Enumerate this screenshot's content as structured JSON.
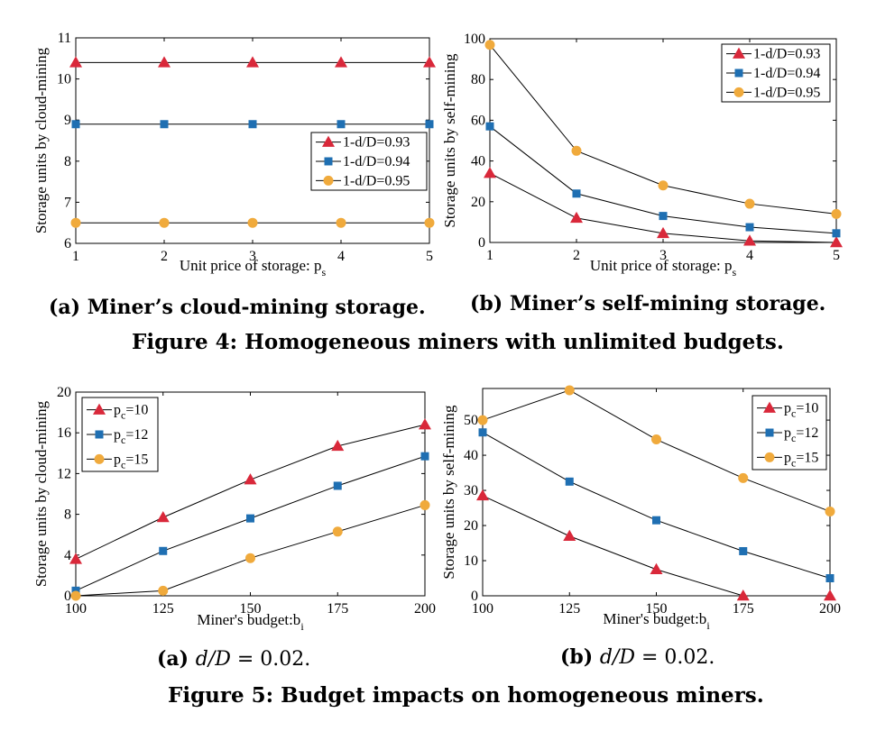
{
  "figure4": {
    "caption": "Figure 4: Homogeneous miners with unlimited budgets.",
    "subcaption_a": "(a) Miner’s cloud-mining storage.",
    "subcaption_b": "(b) Miner’s self-mining storage."
  },
  "figure5": {
    "caption": "Figure 5: Budget impacts on homogeneous miners.",
    "subcaption_a_prefix": "(a)",
    "subcaption_a_math": "d/D",
    "subcaption_a_value": " = 0.02.",
    "subcaption_b_prefix": "(b)",
    "subcaption_b_math": "d/D",
    "subcaption_b_value": " = 0.02."
  },
  "colors": {
    "red": "#d9283a",
    "blue": "#1f6fb2",
    "orange": "#f0aa3c",
    "line": "#000000"
  },
  "chart_data": [
    {
      "id": "fig4a",
      "type": "line",
      "xlabel": "Unit price of storage: p",
      "xlabel_sub": "s",
      "ylabel": "Storage units by cloud-mining",
      "x": [
        1,
        2,
        3,
        4,
        5
      ],
      "xlim": [
        1,
        5
      ],
      "ylim": [
        6,
        11
      ],
      "xticks": [
        1,
        2,
        3,
        4,
        5
      ],
      "yticks": [
        6,
        7,
        8,
        9,
        10,
        11
      ],
      "legend_position": "lower-right",
      "series": [
        {
          "name": "1-d/D=0.93",
          "name_sub": "",
          "marker": "triangle",
          "color": "red",
          "values": [
            10.4,
            10.4,
            10.4,
            10.4,
            10.4
          ]
        },
        {
          "name": "1-d/D=0.94",
          "name_sub": "",
          "marker": "square",
          "color": "blue",
          "values": [
            8.9,
            8.9,
            8.9,
            8.9,
            8.9
          ]
        },
        {
          "name": "1-d/D=0.95",
          "name_sub": "",
          "marker": "circle",
          "color": "orange",
          "values": [
            6.5,
            6.5,
            6.5,
            6.5,
            6.5
          ]
        }
      ]
    },
    {
      "id": "fig4b",
      "type": "line",
      "xlabel": "Unit price of storage: p",
      "xlabel_sub": "s",
      "ylabel": "Storage units by self-mining",
      "x": [
        1,
        2,
        3,
        4,
        5
      ],
      "xlim": [
        1,
        5
      ],
      "ylim": [
        0,
        100
      ],
      "xticks": [
        1,
        2,
        3,
        4,
        5
      ],
      "yticks": [
        0,
        20,
        40,
        60,
        80,
        100
      ],
      "legend_position": "top-right",
      "series": [
        {
          "name": "1-d/D=0.93",
          "name_sub": "",
          "marker": "triangle",
          "color": "red",
          "values": [
            34,
            12,
            4.5,
            0.8,
            0
          ]
        },
        {
          "name": "1-d/D=0.94",
          "name_sub": "",
          "marker": "square",
          "color": "blue",
          "values": [
            57,
            24,
            13,
            7.5,
            4.5
          ]
        },
        {
          "name": "1-d/D=0.95",
          "name_sub": "",
          "marker": "circle",
          "color": "orange",
          "values": [
            97,
            45,
            28,
            19,
            14
          ]
        }
      ]
    },
    {
      "id": "fig5a",
      "type": "line",
      "xlabel": "Miner's budget:b",
      "xlabel_sub": "i",
      "ylabel": "Storage units by cloud-mining",
      "x": [
        100,
        125,
        150,
        175,
        200
      ],
      "xlim": [
        100,
        200
      ],
      "ylim": [
        0,
        20
      ],
      "xticks": [
        100,
        125,
        150,
        175,
        200
      ],
      "yticks": [
        0,
        4,
        8,
        12,
        16,
        20
      ],
      "legend_position": "top-left",
      "series": [
        {
          "name": "p",
          "name_sub": "c",
          "name_suffix": "=10",
          "marker": "triangle",
          "color": "red",
          "values": [
            3.6,
            7.7,
            11.4,
            14.7,
            16.8
          ]
        },
        {
          "name": "p",
          "name_sub": "c",
          "name_suffix": "=12",
          "marker": "square",
          "color": "blue",
          "values": [
            0.5,
            4.4,
            7.6,
            10.8,
            13.7
          ]
        },
        {
          "name": "p",
          "name_sub": "c",
          "name_suffix": "=15",
          "marker": "circle",
          "color": "orange",
          "values": [
            0,
            0.5,
            3.7,
            6.3,
            8.9
          ]
        }
      ]
    },
    {
      "id": "fig5b",
      "type": "line",
      "xlabel": "Miner's budget:b",
      "xlabel_sub": "i",
      "ylabel": "Storage units by self-mining",
      "x": [
        100,
        125,
        150,
        175,
        200
      ],
      "xlim": [
        100,
        200
      ],
      "ylim": [
        0,
        59
      ],
      "xticks": [
        100,
        125,
        150,
        175,
        200
      ],
      "yticks": [
        0,
        10,
        20,
        30,
        40,
        50
      ],
      "legend_position": "top-right",
      "series": [
        {
          "name": "p",
          "name_sub": "c",
          "name_suffix": "=10",
          "marker": "triangle",
          "color": "red",
          "values": [
            28.5,
            17,
            7.5,
            0,
            0
          ]
        },
        {
          "name": "p",
          "name_sub": "c",
          "name_suffix": "=12",
          "marker": "square",
          "color": "blue",
          "values": [
            46.5,
            32.5,
            21.5,
            12.7,
            5
          ]
        },
        {
          "name": "p",
          "name_sub": "c",
          "name_suffix": "=15",
          "marker": "circle",
          "color": "orange",
          "values": [
            50,
            58.5,
            44.5,
            33.5,
            24
          ]
        }
      ]
    }
  ]
}
